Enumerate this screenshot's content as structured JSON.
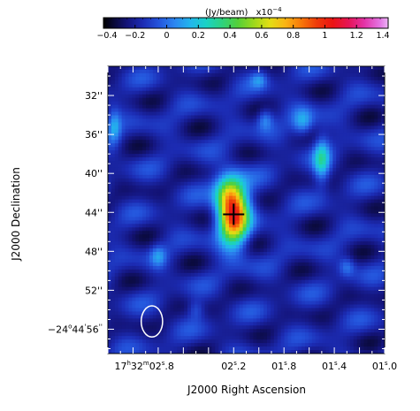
{
  "colorbar": {
    "unit_label": "(Jy/beam)",
    "multiplier_base": "x10",
    "multiplier_exponent": "−4",
    "ticks": [
      "−0.4",
      "−0.2",
      "0",
      "0.2",
      "0.4",
      "0.6",
      "0.8",
      "1",
      "1.2",
      "1.4"
    ],
    "range": [
      -0.4,
      1.4
    ],
    "stops": [
      {
        "v": -0.4,
        "color": "#000000"
      },
      {
        "v": -0.33,
        "color": "#0a0a3a"
      },
      {
        "v": -0.25,
        "color": "#14147a"
      },
      {
        "v": -0.15,
        "color": "#1c2cb4"
      },
      {
        "v": -0.05,
        "color": "#2454dc"
      },
      {
        "v": 0.05,
        "color": "#2c86f0"
      },
      {
        "v": 0.15,
        "color": "#22b6ec"
      },
      {
        "v": 0.25,
        "color": "#1ad2c6"
      },
      {
        "v": 0.35,
        "color": "#2ed27e"
      },
      {
        "v": 0.45,
        "color": "#54d038"
      },
      {
        "v": 0.55,
        "color": "#9cd81c"
      },
      {
        "v": 0.65,
        "color": "#e2de14"
      },
      {
        "v": 0.75,
        "color": "#fab414"
      },
      {
        "v": 0.85,
        "color": "#f7780a"
      },
      {
        "v": 0.95,
        "color": "#ee3a0a"
      },
      {
        "v": 1.05,
        "color": "#ea1414"
      },
      {
        "v": 1.15,
        "color": "#e61456"
      },
      {
        "v": 1.25,
        "color": "#e434a8"
      },
      {
        "v": 1.35,
        "color": "#e478e4"
      },
      {
        "v": 1.4,
        "color": "#ecb4f4"
      }
    ]
  },
  "map": {
    "background_level": -0.18,
    "features": [
      {
        "ra_off": 0.0,
        "dec": 44.2,
        "sx": 0.55,
        "sy": 2.2,
        "amp": 1.15
      },
      {
        "ra_off": 0.06,
        "dec": 42.0,
        "sx": 0.5,
        "sy": 1.4,
        "amp": 0.35
      },
      {
        "ra_off": -0.7,
        "dec": 38.6,
        "sx": 0.3,
        "sy": 1.7,
        "amp": 0.38
      },
      {
        "ra_off": -0.55,
        "dec": 34.8,
        "sx": 0.4,
        "sy": 1.0,
        "amp": 0.3
      },
      {
        "ra_off": -0.25,
        "dec": 34.4,
        "sx": 0.3,
        "sy": 0.8,
        "amp": 0.25
      },
      {
        "ra_off": -1.7,
        "dec": 32.4,
        "sx": 0.25,
        "sy": 1.4,
        "amp": 0.45
      },
      {
        "ra_off": -1.45,
        "dec": 40.2,
        "sx": 0.3,
        "sy": 0.8,
        "amp": 0.3
      },
      {
        "ra_off": -1.4,
        "dec": 44.8,
        "sx": 0.25,
        "sy": 0.9,
        "amp": 0.25
      },
      {
        "ra_off": -1.95,
        "dec": 55.2,
        "sx": 0.18,
        "sy": 1.6,
        "amp": 0.5
      },
      {
        "ra_off": 0.95,
        "dec": 35.2,
        "sx": 0.25,
        "sy": 1.2,
        "amp": 0.28
      },
      {
        "ra_off": 1.95,
        "dec": 32.0,
        "sx": 0.22,
        "sy": 1.0,
        "amp": 0.32
      },
      {
        "ra_off": 1.8,
        "dec": 46.2,
        "sx": 0.2,
        "sy": 0.8,
        "amp": 0.3
      },
      {
        "ra_off": 0.6,
        "dec": 48.5,
        "sx": 0.3,
        "sy": 0.8,
        "amp": 0.22
      },
      {
        "ra_off": -0.9,
        "dec": 49.6,
        "sx": 0.3,
        "sy": 0.7,
        "amp": 0.2
      },
      {
        "ra_off": 1.3,
        "dec": 56.2,
        "sx": 0.3,
        "sy": 0.7,
        "amp": 0.25
      },
      {
        "ra_off": 2.35,
        "dec": 39.2,
        "sx": 0.25,
        "sy": 0.9,
        "amp": 0.25
      },
      {
        "ra_off": -2.1,
        "dec": 31.6,
        "sx": 0.2,
        "sy": 0.6,
        "amp": 0.2
      },
      {
        "ra_off": 0.3,
        "dec": 54.0,
        "sx": 0.3,
        "sy": 0.7,
        "amp": 0.15
      },
      {
        "ra_off": -0.2,
        "dec": 30.4,
        "sx": 0.3,
        "sy": 0.6,
        "amp": 0.2
      },
      {
        "ra_off": 1.1,
        "dec": 41.8,
        "sx": 0.3,
        "sy": 0.9,
        "amp": 0.18
      }
    ]
  },
  "axes": {
    "y_title": "J2000 Declination",
    "x_title": "J2000 Right Ascension",
    "y_ticks": [
      {
        "dec": 32,
        "label": "32''"
      },
      {
        "dec": 36,
        "label": "36''"
      },
      {
        "dec": 40,
        "label": "40''"
      },
      {
        "dec": 44,
        "label": "44''"
      },
      {
        "dec": 48,
        "label": "48''"
      },
      {
        "dec": 52,
        "label": "52''"
      }
    ],
    "y_anchor_label": {
      "dec": 56,
      "main": "−24",
      "deg": "o",
      "min": "44",
      "min_mark": "'",
      "sec": "56",
      "sec_mark": "''"
    },
    "x_ticks": [
      {
        "ra": 2.8,
        "sec": "02",
        "frac": ".8"
      },
      {
        "ra": 2.2,
        "sec": "02",
        "frac": ".2"
      },
      {
        "ra": 1.8,
        "sec": "01",
        "frac": ".8"
      },
      {
        "ra": 1.4,
        "sec": "01",
        "frac": ".4"
      },
      {
        "ra": 1.0,
        "sec": "01",
        "frac": ".0"
      }
    ],
    "x_anchor_label": {
      "h": "17",
      "m": "32",
      "s": "02",
      "frac": ".8"
    },
    "ra_range": [
      3.2,
      1.0
    ],
    "dec_range": [
      29.0,
      58.5
    ]
  },
  "marker": {
    "ra": 2.2,
    "dec": 44.2
  },
  "beam": {
    "ra": 2.85,
    "dec": 55.2,
    "ra_half": 0.085,
    "dec_half": 1.6
  }
}
